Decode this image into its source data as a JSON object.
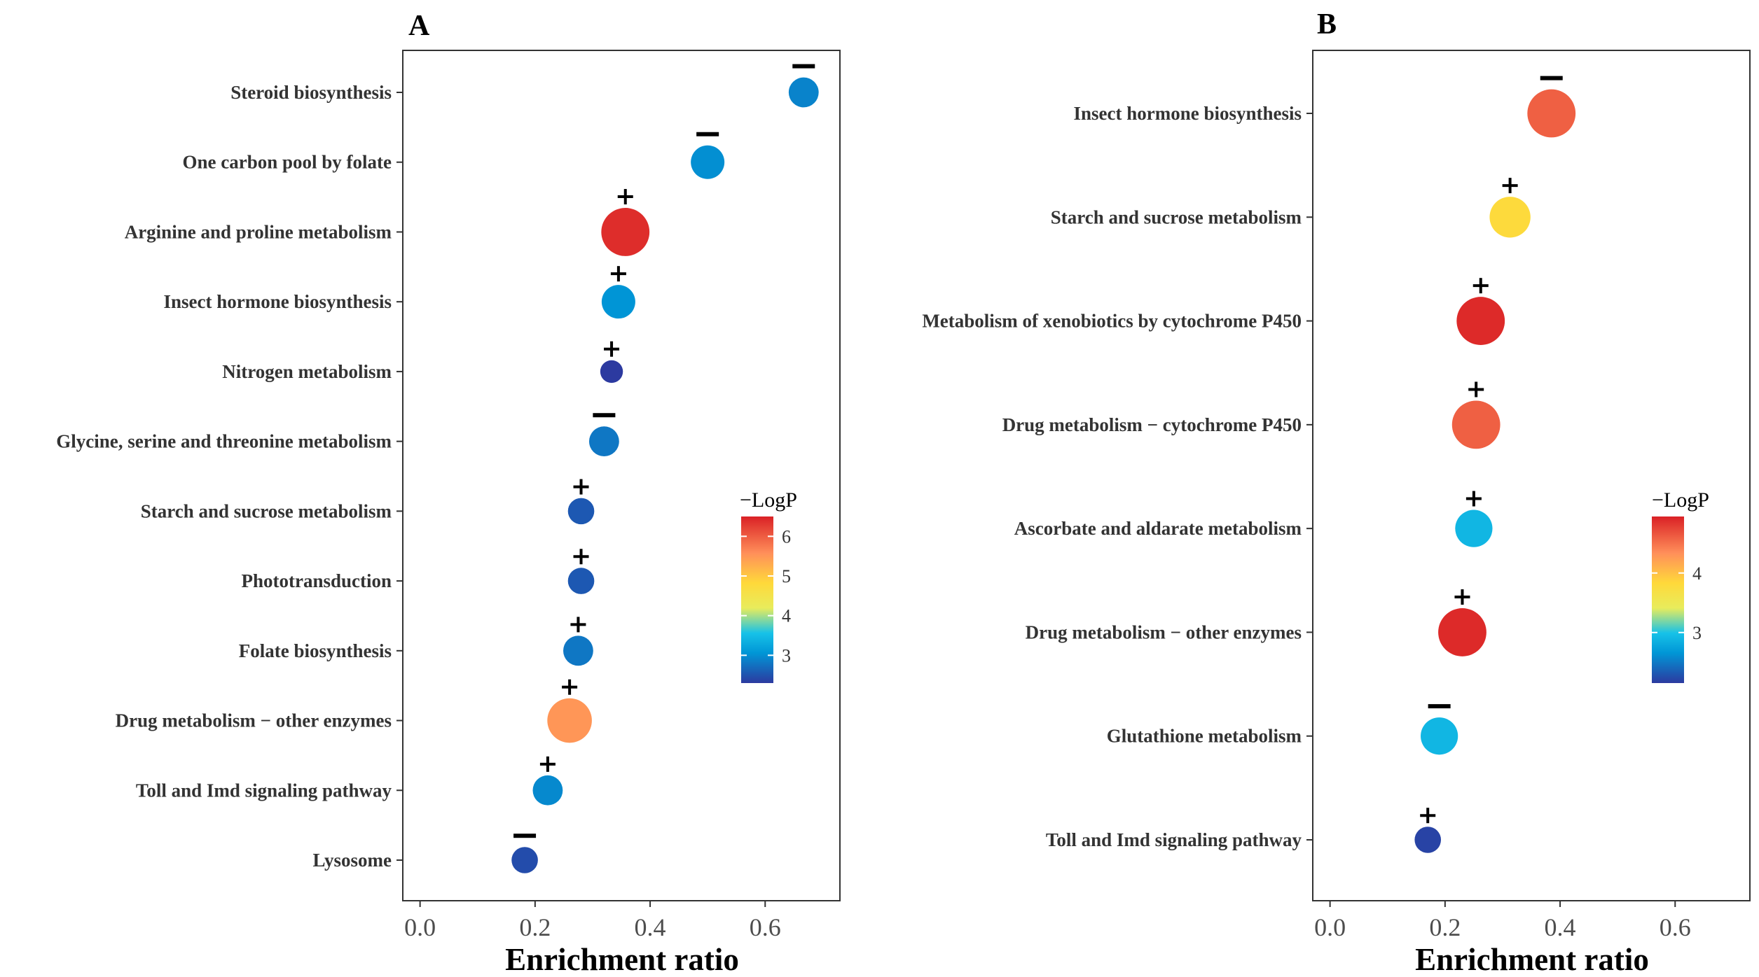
{
  "chart_data": [
    {
      "panel": "A",
      "type": "scatter",
      "title": "A",
      "xlabel": "Enrichment ratio",
      "ylabel": "",
      "xlim": [
        -0.03,
        0.73
      ],
      "xticks": [
        0.0,
        0.2,
        0.4,
        0.6
      ],
      "xtick_labels": [
        "0.0",
        "0.2",
        "0.4",
        "0.6"
      ],
      "categories": [
        "Steroid biosynthesis",
        "One carbon pool by folate",
        "Arginine and proline metabolism",
        "Insect hormone biosynthesis",
        "Nitrogen metabolism",
        "Glycine, serine and threonine metabolism",
        "Starch and sucrose metabolism",
        "Phototransduction",
        "Folate biosynthesis",
        "Drug metabolism − other enzymes",
        "Toll and Imd signaling pathway",
        "Lysosome"
      ],
      "x": [
        0.667,
        0.5,
        0.357,
        0.345,
        0.333,
        0.32,
        0.28,
        0.28,
        0.275,
        0.26,
        0.222,
        0.182
      ],
      "logp": [
        2.9,
        3.0,
        6.4,
        3.05,
        2.3,
        2.8,
        2.55,
        2.55,
        2.8,
        5.5,
        2.95,
        2.45
      ],
      "size": [
        4,
        5,
        9,
        5,
        2,
        4,
        3,
        3,
        4,
        8,
        4,
        3
      ],
      "sign": [
        "−",
        "−",
        "+",
        "+",
        "+",
        "−",
        "+",
        "+",
        "+",
        "+",
        "+",
        "−"
      ],
      "legend": {
        "title": "−LogP",
        "range": [
          2.3,
          6.5
        ],
        "ticks": [
          3,
          4,
          5,
          6
        ],
        "tick_labels": [
          "3",
          "4",
          "5",
          "6"
        ],
        "position": "right"
      }
    },
    {
      "panel": "B",
      "type": "scatter",
      "title": "B",
      "xlabel": "Enrichment ratio",
      "ylabel": "",
      "xlim": [
        -0.03,
        0.73
      ],
      "xticks": [
        0.0,
        0.2,
        0.4,
        0.6
      ],
      "xtick_labels": [
        "0.0",
        "0.2",
        "0.4",
        "0.6"
      ],
      "categories": [
        "Insect hormone biosynthesis",
        "Starch and sucrose metabolism",
        "Metabolism of xenobiotics by cytochrome P450",
        "Drug metabolism − cytochrome P450",
        "Ascorbate and aldarate metabolism",
        "Drug metabolism − other enzymes",
        "Glutathione metabolism",
        "Toll and Imd signaling pathway"
      ],
      "x": [
        0.385,
        0.313,
        0.262,
        0.254,
        0.25,
        0.23,
        0.19,
        0.17
      ],
      "logp": [
        4.6,
        3.8,
        4.9,
        4.6,
        2.9,
        4.9,
        2.9,
        2.2
      ],
      "size": [
        9,
        7,
        9,
        9,
        6,
        9,
        6,
        3
      ],
      "sign": [
        "−",
        "+",
        "+",
        "+",
        "+",
        "+",
        "−",
        "+"
      ],
      "legend": {
        "title": "−LogP",
        "range": [
          2.15,
          4.95
        ],
        "ticks": [
          3,
          4
        ],
        "tick_labels": [
          "3",
          "4"
        ],
        "position": "right"
      }
    }
  ]
}
